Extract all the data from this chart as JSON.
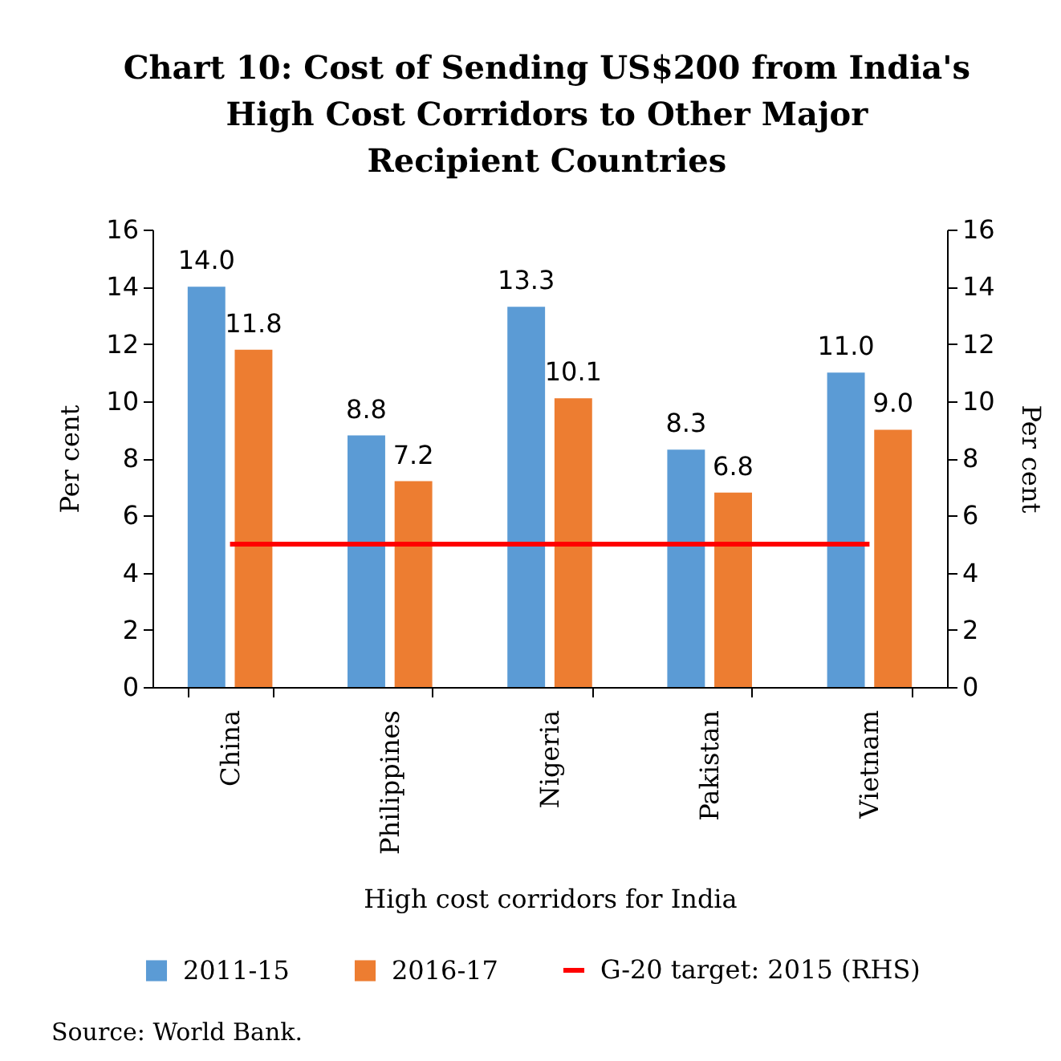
{
  "chart_data": {
    "type": "bar",
    "title": "Chart 10: Cost of Sending US$200 from India's\nHigh Cost Corridors to Other Major\nRecipient Countries",
    "xlabel": "High cost corridors for India",
    "ylabel": "Per cent",
    "y2label": "Per cent",
    "categories": [
      "China",
      "Philippines",
      "Nigeria",
      "Pakistan",
      "Vietnam"
    ],
    "series": [
      {
        "name": "2011-15",
        "color": "#5b9bd5",
        "values": [
          14.0,
          8.8,
          13.3,
          8.3,
          11.0
        ],
        "value_labels": [
          "14.0",
          "8.8",
          "13.3",
          "8.3",
          "11.0"
        ]
      },
      {
        "name": "2016-17",
        "color": "#ed7d31",
        "values": [
          11.8,
          7.2,
          10.1,
          6.8,
          9.0
        ],
        "value_labels": [
          "11.8",
          "7.2",
          "10.1",
          "6.8",
          "9.0"
        ]
      },
      {
        "name": "G-20 target: 2015 (RHS)",
        "type": "line",
        "axis": "y2",
        "color": "#ff0000",
        "values": [
          5,
          5,
          5,
          5,
          5
        ]
      }
    ],
    "ylim": [
      0,
      16
    ],
    "yticks": [
      0,
      2,
      4,
      6,
      8,
      10,
      12,
      14,
      16
    ],
    "y2lim": [
      0,
      16
    ],
    "y2ticks": [
      0,
      2,
      4,
      6,
      8,
      10,
      12,
      14,
      16
    ],
    "legend": "bottom",
    "annotations": [
      "Source: World Bank."
    ]
  }
}
